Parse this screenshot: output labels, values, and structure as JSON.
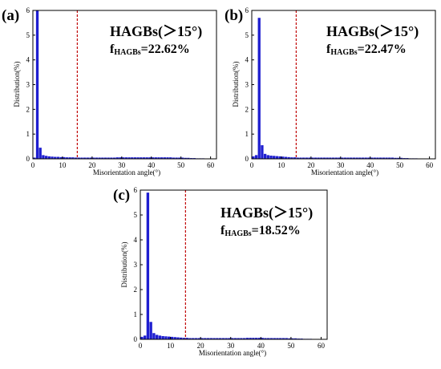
{
  "colors": {
    "bar": "#1f1fd0",
    "threshold": "#c00000",
    "axis": "#000000"
  },
  "chart_data": [
    {
      "type": "bar",
      "panel_label": "(a)",
      "annotation_title": "HAGBs(＞15°)",
      "annotation_f": "f",
      "annotation_sub": "HAGBs",
      "annotation_value": "=22.62%",
      "xlabel": "Misorientation angle(°)",
      "ylabel": "Distribution(%)",
      "xlim": [
        0,
        62
      ],
      "ylim": [
        0,
        6
      ],
      "xticks": [
        "0",
        "10",
        "20",
        "30",
        "40",
        "50",
        "60"
      ],
      "yticks": [
        "0",
        "1",
        "2",
        "3",
        "4",
        "5",
        "6"
      ],
      "threshold": 15,
      "x": [
        0.5,
        1.5,
        2.5,
        3.5,
        4.5,
        5.5,
        6.5,
        7.5,
        8.5,
        9.5,
        10.5,
        11.5,
        12.5,
        13.5,
        14.5,
        15.5,
        16.5,
        17.5,
        18.5,
        19.5,
        20.5,
        21.5,
        22.5,
        23.5,
        24.5,
        25.5,
        26.5,
        27.5,
        28.5,
        29.5,
        30.5,
        31.5,
        32.5,
        33.5,
        34.5,
        35.5,
        36.5,
        37.5,
        38.5,
        39.5,
        40.5,
        41.5,
        42.5,
        43.5,
        44.5,
        45.5,
        46.5,
        47.5,
        48.5,
        49.5,
        50.5,
        51.5,
        52.5,
        53.5,
        54.5,
        55.5,
        56.5,
        57.5,
        58.5,
        59.5
      ],
      "values": [
        0.05,
        6.0,
        0.45,
        0.15,
        0.12,
        0.1,
        0.09,
        0.08,
        0.08,
        0.07,
        0.07,
        0.06,
        0.06,
        0.06,
        0.05,
        0.05,
        0.05,
        0.05,
        0.05,
        0.05,
        0.05,
        0.05,
        0.05,
        0.05,
        0.05,
        0.05,
        0.05,
        0.05,
        0.06,
        0.06,
        0.06,
        0.06,
        0.06,
        0.06,
        0.06,
        0.06,
        0.06,
        0.06,
        0.06,
        0.06,
        0.06,
        0.06,
        0.06,
        0.06,
        0.06,
        0.06,
        0.06,
        0.05,
        0.05,
        0.05,
        0.05,
        0.04,
        0.04,
        0.03,
        0.03,
        0.02,
        0.02,
        0.02,
        0.01,
        0.01
      ]
    },
    {
      "type": "bar",
      "panel_label": "(b)",
      "annotation_title": "HAGBs(＞15°)",
      "annotation_f": "f",
      "annotation_sub": "HAGBs",
      "annotation_value": "=22.47%",
      "xlabel": "Misorientation angle(°)",
      "ylabel": "Distribution(%)",
      "xlim": [
        0,
        62
      ],
      "ylim": [
        0,
        6
      ],
      "xticks": [
        "0",
        "10",
        "20",
        "30",
        "40",
        "50",
        "60"
      ],
      "yticks": [
        "0",
        "1",
        "2",
        "3",
        "4",
        "5",
        "6"
      ],
      "threshold": 15,
      "x": [
        0.5,
        1.5,
        2.5,
        3.5,
        4.5,
        5.5,
        6.5,
        7.5,
        8.5,
        9.5,
        10.5,
        11.5,
        12.5,
        13.5,
        14.5,
        15.5,
        16.5,
        17.5,
        18.5,
        19.5,
        20.5,
        21.5,
        22.5,
        23.5,
        24.5,
        25.5,
        26.5,
        27.5,
        28.5,
        29.5,
        30.5,
        31.5,
        32.5,
        33.5,
        34.5,
        35.5,
        36.5,
        37.5,
        38.5,
        39.5,
        40.5,
        41.5,
        42.5,
        43.5,
        44.5,
        45.5,
        46.5,
        47.5,
        48.5,
        49.5,
        50.5,
        51.5,
        52.5,
        53.5,
        54.5,
        55.5,
        56.5,
        57.5,
        58.5,
        59.5
      ],
      "values": [
        0.1,
        0.15,
        5.7,
        0.55,
        0.2,
        0.15,
        0.13,
        0.12,
        0.11,
        0.1,
        0.09,
        0.08,
        0.07,
        0.06,
        0.06,
        0.05,
        0.05,
        0.05,
        0.05,
        0.05,
        0.05,
        0.05,
        0.05,
        0.05,
        0.05,
        0.05,
        0.05,
        0.05,
        0.05,
        0.05,
        0.05,
        0.05,
        0.05,
        0.05,
        0.05,
        0.05,
        0.05,
        0.05,
        0.05,
        0.05,
        0.05,
        0.05,
        0.05,
        0.05,
        0.05,
        0.05,
        0.05,
        0.05,
        0.04,
        0.04,
        0.04,
        0.03,
        0.03,
        0.02,
        0.02,
        0.02,
        0.01,
        0.01,
        0.01,
        0.01
      ]
    },
    {
      "type": "bar",
      "panel_label": "(c)",
      "annotation_title": "HAGBs(＞15°)",
      "annotation_f": "f",
      "annotation_sub": "HAGBs",
      "annotation_value": "=18.52%",
      "xlabel": "Misorientation angle(°)",
      "ylabel": "Distribution(%)",
      "xlim": [
        0,
        62
      ],
      "ylim": [
        0,
        6
      ],
      "xticks": [
        "0",
        "10",
        "20",
        "30",
        "40",
        "50",
        "60"
      ],
      "yticks": [
        "0",
        "1",
        "2",
        "3",
        "4",
        "5",
        "6"
      ],
      "threshold": 15,
      "x": [
        0.5,
        1.5,
        2.5,
        3.5,
        4.5,
        5.5,
        6.5,
        7.5,
        8.5,
        9.5,
        10.5,
        11.5,
        12.5,
        13.5,
        14.5,
        15.5,
        16.5,
        17.5,
        18.5,
        19.5,
        20.5,
        21.5,
        22.5,
        23.5,
        24.5,
        25.5,
        26.5,
        27.5,
        28.5,
        29.5,
        30.5,
        31.5,
        32.5,
        33.5,
        34.5,
        35.5,
        36.5,
        37.5,
        38.5,
        39.5,
        40.5,
        41.5,
        42.5,
        43.5,
        44.5,
        45.5,
        46.5,
        47.5,
        48.5,
        49.5,
        50.5,
        51.5,
        52.5,
        53.5,
        54.5,
        55.5,
        56.5,
        57.5,
        58.5,
        59.5
      ],
      "values": [
        0.1,
        0.15,
        5.9,
        0.7,
        0.25,
        0.18,
        0.15,
        0.13,
        0.12,
        0.11,
        0.1,
        0.09,
        0.08,
        0.07,
        0.06,
        0.06,
        0.05,
        0.05,
        0.05,
        0.05,
        0.05,
        0.05,
        0.05,
        0.05,
        0.05,
        0.05,
        0.05,
        0.05,
        0.05,
        0.05,
        0.05,
        0.05,
        0.05,
        0.05,
        0.05,
        0.06,
        0.06,
        0.06,
        0.06,
        0.06,
        0.06,
        0.05,
        0.05,
        0.05,
        0.05,
        0.05,
        0.05,
        0.05,
        0.05,
        0.04,
        0.04,
        0.04,
        0.03,
        0.03,
        0.02,
        0.02,
        0.02,
        0.01,
        0.01,
        0.01
      ]
    }
  ]
}
